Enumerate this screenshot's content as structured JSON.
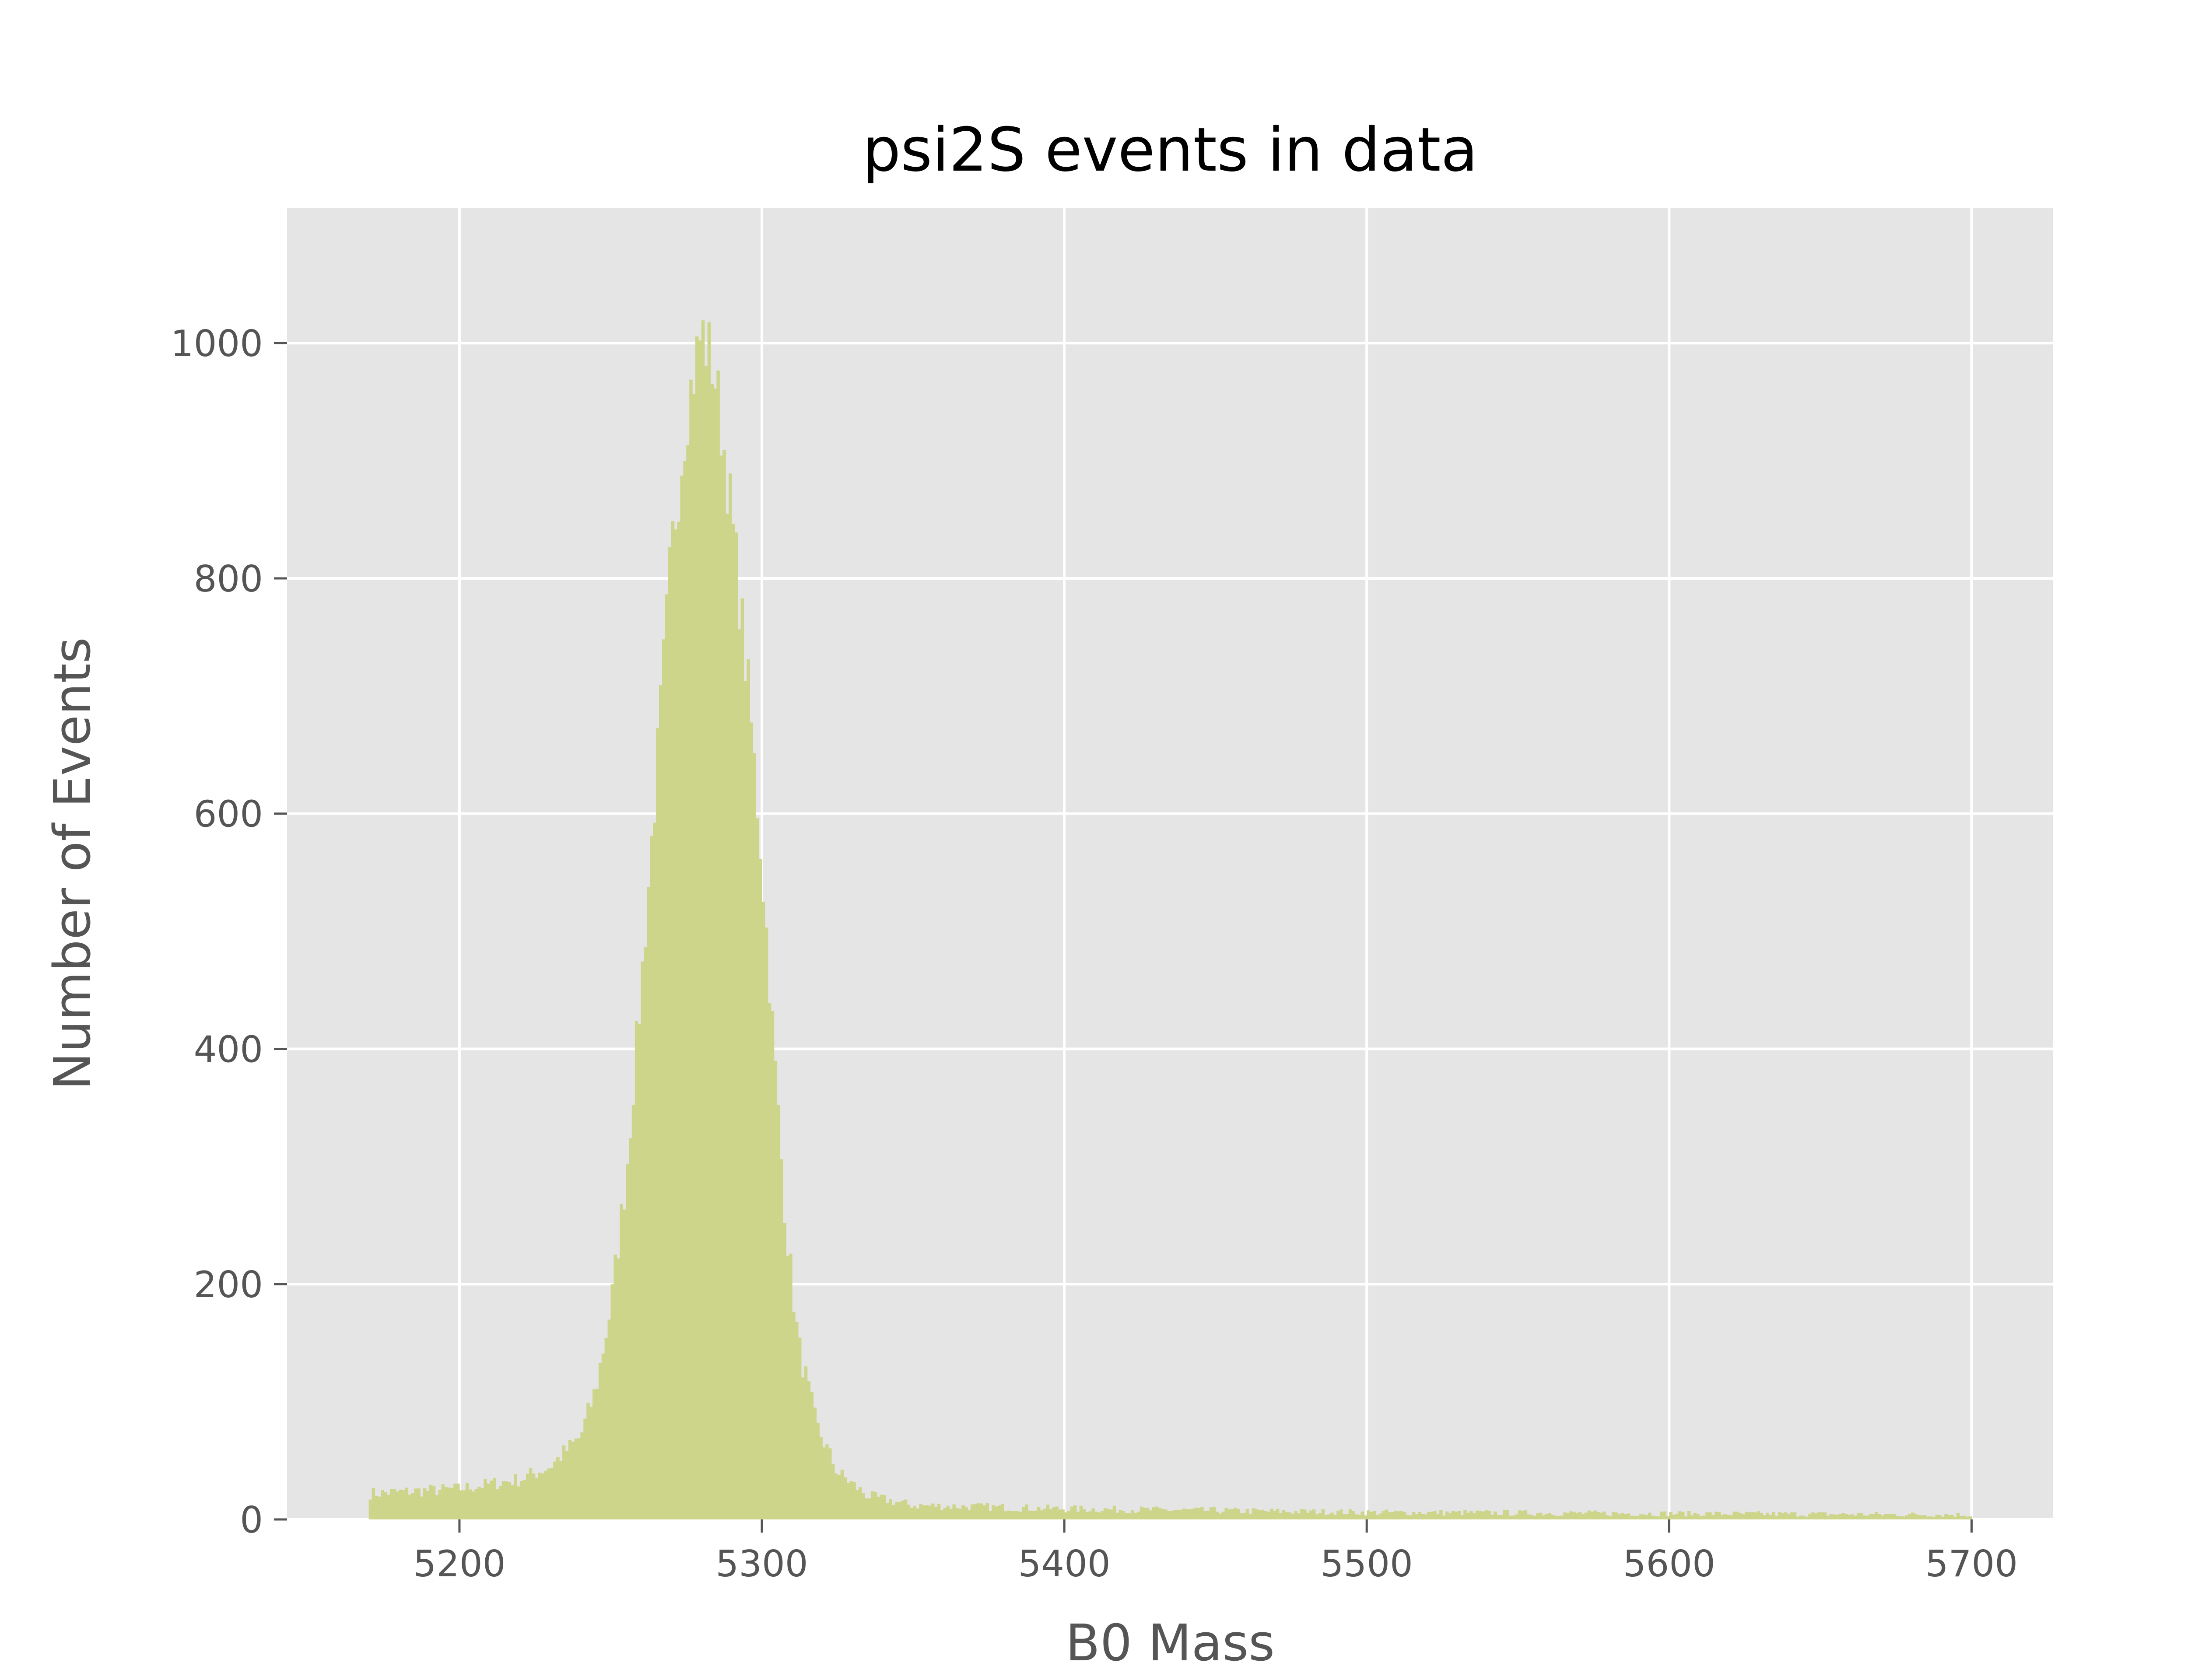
{
  "chart_data": {
    "type": "histogram",
    "title": "psi2S events in data",
    "xlabel": "B0 Mass",
    "ylabel": "Number of Events",
    "xlim": [
      5143,
      5727
    ],
    "ylim": [
      0,
      1115
    ],
    "x_ticks": [
      5200,
      5300,
      5400,
      5500,
      5600,
      5700
    ],
    "y_ticks": [
      0,
      200,
      400,
      600,
      800,
      1000
    ],
    "grid": true,
    "legend": "none",
    "colors": {
      "bar": "#cdd58a",
      "plot_background": "#e5e5e5",
      "grid": "#ffffff"
    },
    "bin_edges": [
      5170,
      5700
    ],
    "peak_value": 1062,
    "profile": [
      {
        "x": 5170,
        "y": 22
      },
      {
        "x": 5200,
        "y": 26
      },
      {
        "x": 5220,
        "y": 34
      },
      {
        "x": 5230,
        "y": 45
      },
      {
        "x": 5240,
        "y": 70
      },
      {
        "x": 5245,
        "y": 110
      },
      {
        "x": 5250,
        "y": 180
      },
      {
        "x": 5255,
        "y": 290
      },
      {
        "x": 5260,
        "y": 450
      },
      {
        "x": 5265,
        "y": 630
      },
      {
        "x": 5270,
        "y": 820
      },
      {
        "x": 5275,
        "y": 940
      },
      {
        "x": 5280,
        "y": 1010
      },
      {
        "x": 5284,
        "y": 980
      },
      {
        "x": 5288,
        "y": 900
      },
      {
        "x": 5292,
        "y": 800
      },
      {
        "x": 5296,
        "y": 690
      },
      {
        "x": 5300,
        "y": 560
      },
      {
        "x": 5304,
        "y": 400
      },
      {
        "x": 5308,
        "y": 250
      },
      {
        "x": 5312,
        "y": 150
      },
      {
        "x": 5318,
        "y": 80
      },
      {
        "x": 5325,
        "y": 40
      },
      {
        "x": 5335,
        "y": 20
      },
      {
        "x": 5350,
        "y": 12
      },
      {
        "x": 5400,
        "y": 9
      },
      {
        "x": 5500,
        "y": 6
      },
      {
        "x": 5600,
        "y": 5
      },
      {
        "x": 5700,
        "y": 4
      }
    ]
  }
}
